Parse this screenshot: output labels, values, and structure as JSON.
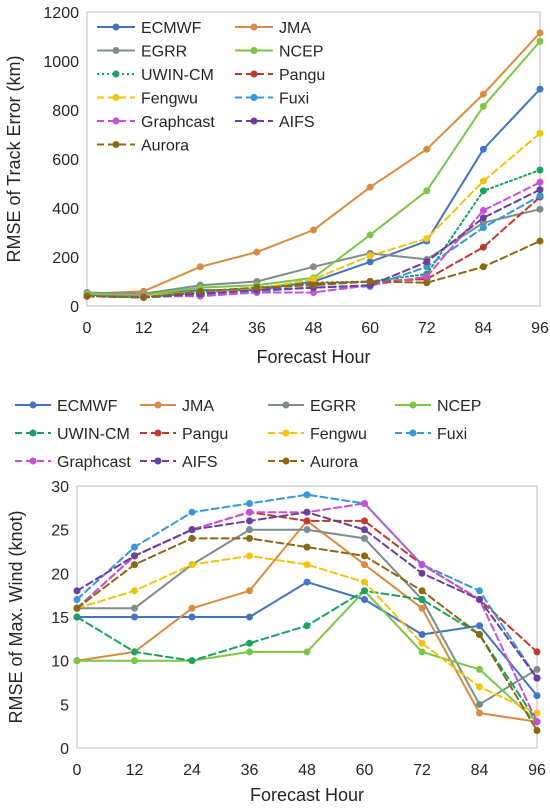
{
  "chart_data": [
    {
      "type": "line",
      "xlabel": "Forecast Hour",
      "ylabel": "RMSE of Track Error (km)",
      "x": [
        0,
        12,
        24,
        36,
        48,
        60,
        72,
        84,
        96
      ],
      "xlim": [
        0,
        96
      ],
      "ylim": [
        0,
        1200
      ],
      "yticks": [
        0,
        200,
        400,
        600,
        800,
        1000,
        1200
      ],
      "grid": false,
      "legend_placement": "top-left, inside plot, 2 columns",
      "series": [
        {
          "name": "ECMWF",
          "color": "#4472C4",
          "dash": "solid",
          "values": [
            45,
            45,
            65,
            65,
            100,
            180,
            265,
            640,
            885
          ]
        },
        {
          "name": "JMA",
          "color": "#D98C40",
          "dash": "solid",
          "values": [
            50,
            60,
            160,
            220,
            310,
            485,
            640,
            865,
            1115
          ]
        },
        {
          "name": "EGRR",
          "color": "#7F8C8D",
          "dash": "solid",
          "values": [
            55,
            50,
            85,
            100,
            160,
            215,
            190,
            340,
            395
          ]
        },
        {
          "name": "NCEP",
          "color": "#7DC547",
          "dash": "solid",
          "values": [
            50,
            45,
            75,
            85,
            115,
            290,
            470,
            815,
            1080
          ]
        },
        {
          "name": "UWIN-CM",
          "color": "#1BA262",
          "dash": "dotted",
          "values": [
            40,
            35,
            55,
            75,
            95,
            100,
            130,
            470,
            555
          ]
        },
        {
          "name": "Pangu",
          "color": "#C0392B",
          "dash": "dashed",
          "values": [
            40,
            35,
            50,
            70,
            90,
            100,
            110,
            240,
            445
          ]
        },
        {
          "name": "Fengwu",
          "color": "#F1C40F",
          "dash": "dashed",
          "values": [
            40,
            40,
            60,
            70,
            110,
            205,
            275,
            510,
            705
          ]
        },
        {
          "name": "Fuxi",
          "color": "#3498DB",
          "dash": "dashed",
          "values": [
            40,
            35,
            45,
            60,
            75,
            80,
            160,
            320,
            450
          ]
        },
        {
          "name": "Graphcast",
          "color": "#C850D8",
          "dash": "dashed",
          "values": [
            40,
            40,
            40,
            55,
            55,
            85,
            120,
            390,
            505
          ]
        },
        {
          "name": "AIFS",
          "color": "#6B3FA0",
          "dash": "dashed",
          "values": [
            40,
            35,
            50,
            65,
            75,
            85,
            180,
            360,
            475
          ]
        },
        {
          "name": "Aurora",
          "color": "#8B6914",
          "dash": "dashed",
          "values": [
            40,
            35,
            60,
            75,
            85,
            100,
            95,
            160,
            265
          ]
        }
      ]
    },
    {
      "type": "line",
      "xlabel": "Forecast Hour",
      "ylabel": "RMSE of Max. Wind (knot)",
      "x": [
        0,
        12,
        24,
        36,
        48,
        60,
        72,
        84,
        96
      ],
      "xlim": [
        0,
        96
      ],
      "ylim": [
        0,
        30
      ],
      "yticks": [
        0,
        5,
        10,
        15,
        20,
        25,
        30
      ],
      "grid": false,
      "legend_placement": "above plot, 4 columns",
      "series": [
        {
          "name": "ECMWF",
          "color": "#4472C4",
          "dash": "solid",
          "values": [
            15,
            15,
            15,
            15,
            19,
            17,
            13,
            14,
            6
          ]
        },
        {
          "name": "JMA",
          "color": "#D98C40",
          "dash": "solid",
          "values": [
            10,
            11,
            16,
            18,
            26,
            21,
            16,
            4,
            3
          ]
        },
        {
          "name": "EGRR",
          "color": "#7F8C8D",
          "dash": "solid",
          "values": [
            16,
            16,
            21,
            25,
            25,
            24,
            17,
            5,
            9
          ]
        },
        {
          "name": "NCEP",
          "color": "#7DC547",
          "dash": "solid",
          "values": [
            10,
            10,
            10,
            11,
            11,
            18,
            11,
            9,
            3
          ]
        },
        {
          "name": "UWIN-CM",
          "color": "#1BA262",
          "dash": "dashed",
          "values": [
            15,
            11,
            10,
            12,
            14,
            18,
            17,
            13,
            3
          ]
        },
        {
          "name": "Pangu",
          "color": "#C0392B",
          "dash": "dashed",
          "values": [
            16,
            22,
            25,
            27,
            26,
            26,
            21,
            17,
            11
          ]
        },
        {
          "name": "Fengwu",
          "color": "#F1C40F",
          "dash": "dashed",
          "values": [
            16,
            18,
            21,
            22,
            21,
            19,
            12,
            7,
            4
          ]
        },
        {
          "name": "Fuxi",
          "color": "#3498DB",
          "dash": "dashed",
          "values": [
            17,
            23,
            27,
            28,
            29,
            28,
            21,
            18,
            8
          ]
        },
        {
          "name": "Graphcast",
          "color": "#C850D8",
          "dash": "dashed",
          "values": [
            16,
            22,
            25,
            27,
            27,
            28,
            21,
            17,
            3
          ]
        },
        {
          "name": "AIFS",
          "color": "#6B3FA0",
          "dash": "dashed",
          "values": [
            18,
            22,
            25,
            26,
            27,
            25,
            20,
            17,
            8
          ]
        },
        {
          "name": "Aurora",
          "color": "#8B6914",
          "dash": "dashed",
          "values": [
            16,
            21,
            24,
            24,
            23,
            22,
            18,
            13,
            2
          ]
        }
      ]
    }
  ]
}
